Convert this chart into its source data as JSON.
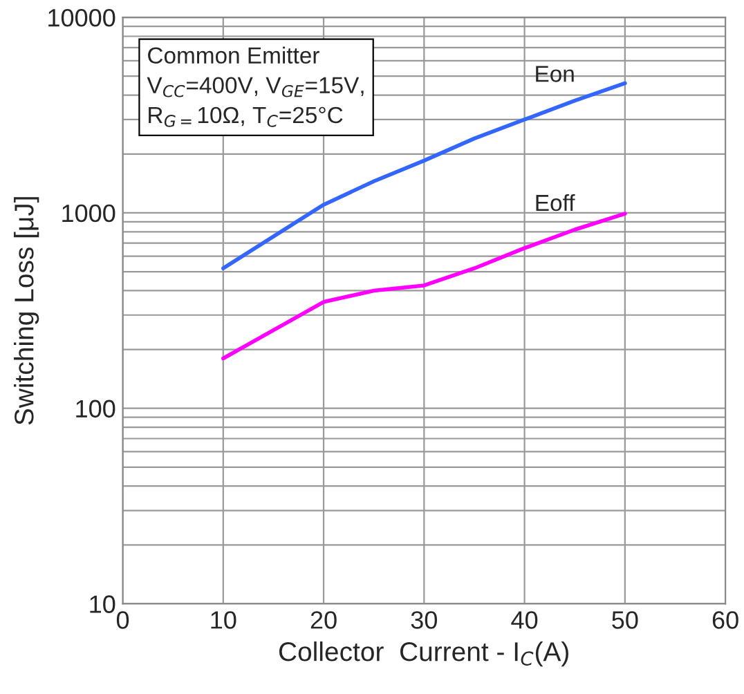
{
  "chart_data": {
    "type": "line",
    "xlabel": "Collector  Current - I$_{C}$(A)",
    "ylabel": "Switching Loss [μJ]",
    "x": [
      10,
      20,
      25,
      30,
      35,
      40,
      45,
      50
    ],
    "series": [
      {
        "name": "Eon",
        "color": "#3366ff",
        "values": [
          520,
          1100,
          1450,
          1850,
          2400,
          3000,
          3750,
          4600
        ]
      },
      {
        "name": "Eoff",
        "color": "#ff00ff",
        "values": [
          180,
          350,
          400,
          425,
          520,
          660,
          820,
          990
        ]
      }
    ],
    "xlim": [
      0,
      60
    ],
    "xticks": [
      0,
      10,
      20,
      30,
      40,
      50,
      60
    ],
    "ylim": [
      10,
      10000
    ],
    "yticks": [
      10,
      100,
      1000,
      10000
    ],
    "log": "y",
    "grid": true,
    "legend": false,
    "marker": "none",
    "line_style": "solid",
    "annotations": [
      "Common Emitter\nV$_{CC}$=400V, V$_{GE}$=15V,\nR$_{G=}$10Ω, T$_{C}$=25°C"
    ]
  }
}
